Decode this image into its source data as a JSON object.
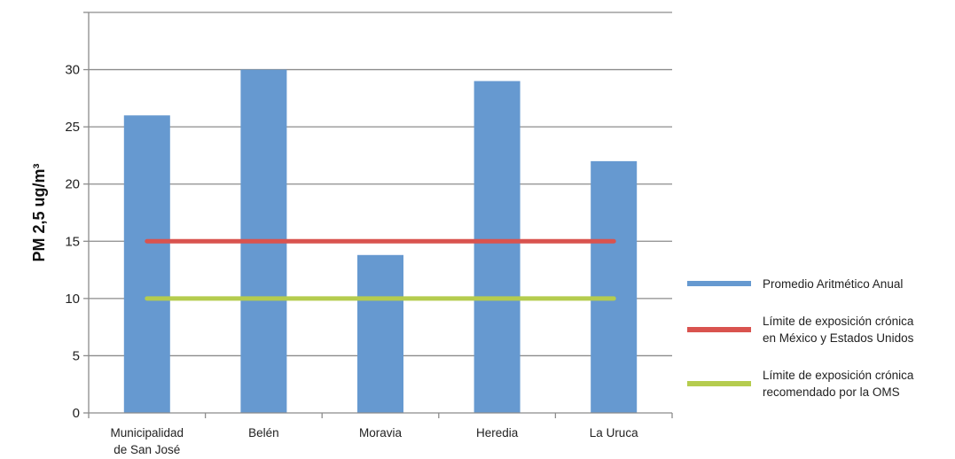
{
  "chart_data": {
    "type": "bar",
    "categories": [
      "Municipalidad de San José",
      "Belén",
      "Moravia",
      "Heredia",
      "La Uruca"
    ],
    "category_label_lines": [
      [
        "Municipalidad",
        "de San José"
      ],
      [
        "Belén"
      ],
      [
        "Moravia"
      ],
      [
        "Heredia"
      ],
      [
        "La Uruca"
      ]
    ],
    "series": [
      {
        "name": "Promedio Aritmético Anual",
        "type": "bar",
        "values": [
          26,
          30,
          13.8,
          29,
          22
        ],
        "color": "#6699D0"
      },
      {
        "name": "Límite de exposición crónica en México y Estados Unidos",
        "type": "line",
        "values": [
          15,
          15,
          15,
          15,
          15
        ],
        "color": "#D9534F"
      },
      {
        "name": "Límite de exposición crónica recomendado por la OMS",
        "type": "line",
        "values": [
          10,
          10,
          10,
          10,
          10
        ],
        "color": "#B5CC4E"
      }
    ],
    "legend_lines": [
      [
        "Promedio Aritmético Anual"
      ],
      [
        "Límite de exposición crónica",
        "en México y Estados Unidos"
      ],
      [
        "Límite de exposición crónica",
        "recomendado por la OMS"
      ]
    ],
    "ylabel": "PM 2,5 ug/m³",
    "xlabel": "",
    "title": "",
    "ylim": [
      0,
      35
    ],
    "yticks": [
      0,
      5,
      10,
      15,
      20,
      25,
      30
    ],
    "grid": true,
    "legend_position": "right"
  }
}
